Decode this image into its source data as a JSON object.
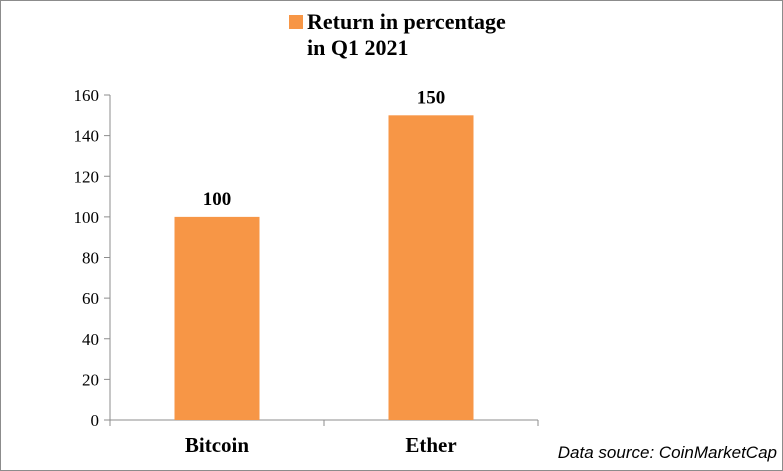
{
  "chart_data": {
    "type": "bar",
    "categories": [
      "Bitcoin",
      "Ether"
    ],
    "series": [
      {
        "name": "Return in percentage in Q1 2021",
        "values": [
          100,
          150
        ],
        "color": "#f79646"
      }
    ],
    "legend": {
      "line1": "Return in percentage",
      "line2": "in Q1 2021",
      "position": "top"
    },
    "ylim": [
      0,
      160
    ],
    "yticks": [
      "0",
      "20",
      "40",
      "60",
      "80",
      "100",
      "120",
      "140",
      "160"
    ],
    "data_labels": [
      "100",
      "150"
    ],
    "grid": false,
    "xlabel": "",
    "ylabel": ""
  },
  "footer": {
    "source": "Data source:  CoinMarketCap"
  }
}
